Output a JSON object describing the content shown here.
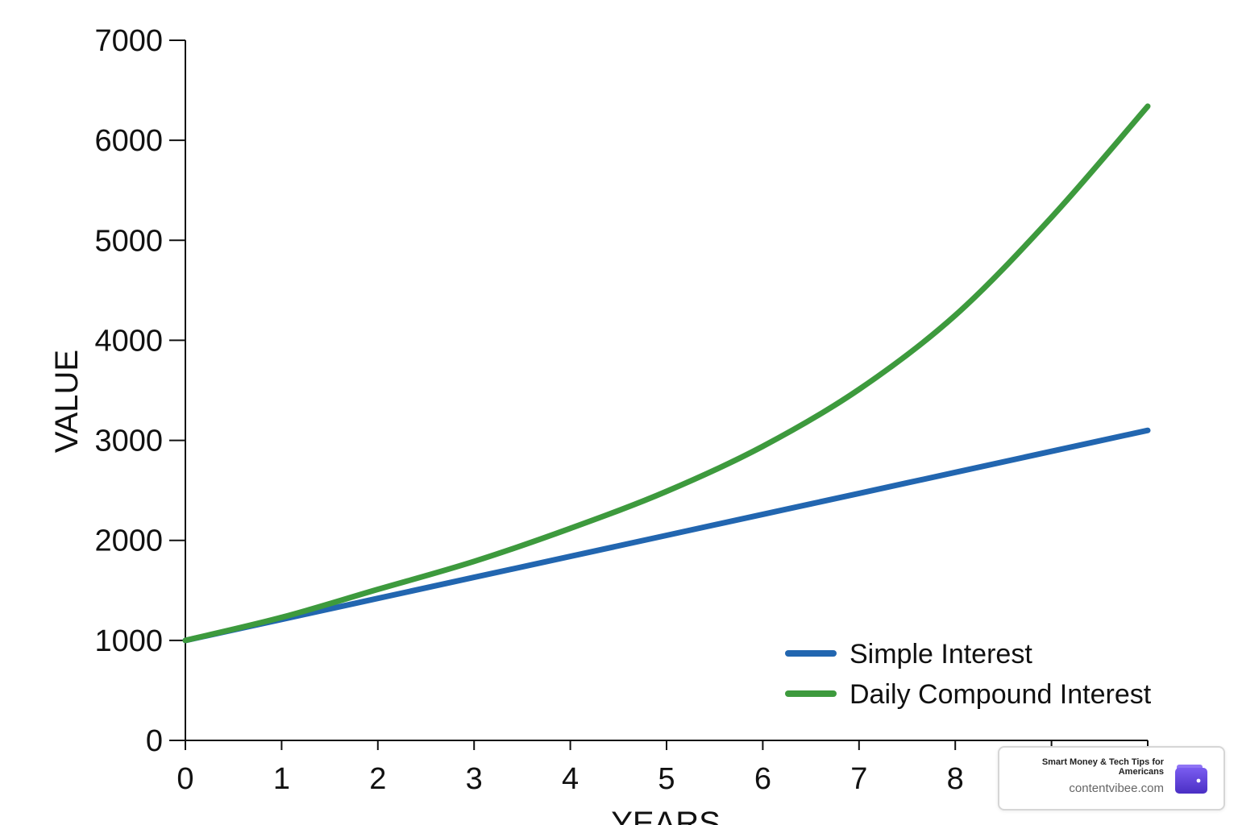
{
  "chart_data": {
    "type": "line",
    "title": "",
    "xlabel": "YEARS",
    "ylabel": "VALUE",
    "xlim": [
      0,
      10
    ],
    "ylim": [
      0,
      7000
    ],
    "x_ticks": [
      "0",
      "1",
      "2",
      "3",
      "4",
      "5",
      "6",
      "7",
      "8"
    ],
    "y_ticks": [
      "0",
      "1000",
      "2000",
      "3000",
      "4000",
      "5000",
      "6000",
      "7000"
    ],
    "grid": false,
    "legend_position": "bottom-right",
    "series": [
      {
        "name": "Simple Interest",
        "color": "#2266b0",
        "x": [
          0,
          1,
          2,
          3,
          4,
          5,
          6,
          7,
          8,
          9,
          10
        ],
        "y": [
          1000,
          1210,
          1420,
          1630,
          1840,
          2050,
          2260,
          2470,
          2680,
          2890,
          3100
        ]
      },
      {
        "name": "Daily Compound Interest",
        "color": "#3d9a3d",
        "x": [
          0,
          1,
          2,
          3,
          4,
          5,
          6,
          7,
          8,
          9,
          10
        ],
        "y": [
          1000,
          1230,
          1510,
          1790,
          2120,
          2490,
          2940,
          3510,
          4250,
          5230,
          6340
        ]
      }
    ]
  },
  "badge": {
    "tagline": "Smart Money & Tech Tips for Americans",
    "site": "contentvibee.com",
    "icon": "wallet-icon",
    "accent": "#5b3fd6"
  }
}
